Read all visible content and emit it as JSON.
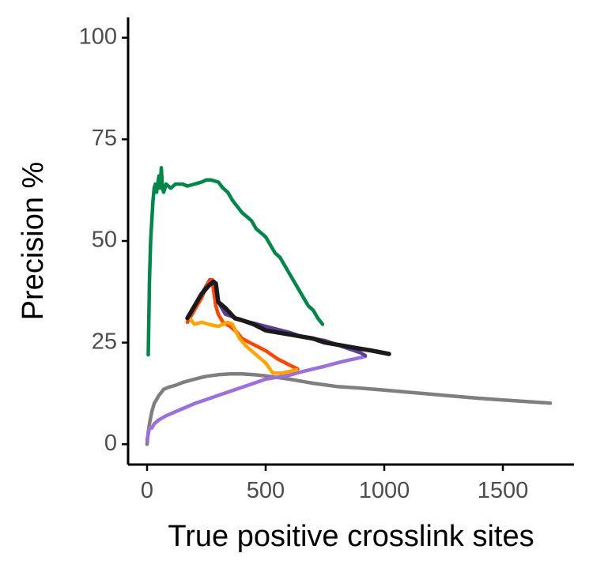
{
  "chart_data": {
    "type": "line",
    "xlabel": "True positive crosslink sites",
    "ylabel": "Precision %",
    "xlim": [
      -80,
      1800
    ],
    "ylim": [
      -5,
      105
    ],
    "x_ticks": [
      0,
      500,
      1000,
      1500
    ],
    "y_ticks": [
      0,
      25,
      50,
      75,
      100
    ],
    "x_tick_labels": [
      "0",
      "500",
      "1000",
      "1500"
    ],
    "y_tick_labels": [
      "0",
      "25",
      "50",
      "75",
      "100"
    ],
    "grid": false,
    "legend": "none",
    "series": [
      {
        "color": "#7f7f7f",
        "points": [
          [
            0,
            0
          ],
          [
            5,
            3
          ],
          [
            10,
            5
          ],
          [
            20,
            8
          ],
          [
            30,
            10
          ],
          [
            50,
            12
          ],
          [
            70,
            13.5
          ],
          [
            90,
            14
          ],
          [
            120,
            14.5
          ],
          [
            150,
            15.2
          ],
          [
            200,
            16
          ],
          [
            250,
            16.7
          ],
          [
            300,
            17.1
          ],
          [
            350,
            17.3
          ],
          [
            400,
            17.3
          ],
          [
            450,
            17.1
          ],
          [
            500,
            16.8
          ],
          [
            600,
            16
          ],
          [
            700,
            15
          ],
          [
            800,
            14.2
          ],
          [
            900,
            13.8
          ],
          [
            1000,
            13.3
          ],
          [
            1100,
            12.8
          ],
          [
            1200,
            12.3
          ],
          [
            1300,
            11.8
          ],
          [
            1400,
            11.3
          ],
          [
            1500,
            10.9
          ],
          [
            1600,
            10.5
          ],
          [
            1700,
            10.1
          ]
        ]
      },
      {
        "color": "#9b6fde",
        "points": [
          [
            0,
            1
          ],
          [
            10,
            4
          ],
          [
            20,
            4
          ],
          [
            30,
            5
          ],
          [
            50,
            6
          ],
          [
            80,
            7
          ],
          [
            120,
            8
          ],
          [
            160,
            9
          ],
          [
            200,
            10
          ],
          [
            250,
            11
          ],
          [
            300,
            12
          ],
          [
            350,
            13
          ],
          [
            400,
            14
          ],
          [
            450,
            15
          ],
          [
            500,
            16
          ],
          [
            550,
            16.5
          ],
          [
            600,
            17
          ],
          [
            650,
            17.8
          ],
          [
            700,
            18.5
          ],
          [
            750,
            19.2
          ],
          [
            800,
            20
          ],
          [
            850,
            20.7
          ],
          [
            900,
            21.3
          ],
          [
            920,
            21.6
          ]
        ]
      },
      {
        "color": "#5a3e97",
        "points": [
          [
            170,
            31
          ],
          [
            190,
            33
          ],
          [
            210,
            35
          ],
          [
            230,
            37
          ],
          [
            250,
            39
          ],
          [
            265,
            40.5
          ],
          [
            280,
            40
          ],
          [
            300,
            35
          ],
          [
            330,
            32
          ],
          [
            400,
            30.5
          ],
          [
            500,
            29
          ],
          [
            600,
            27.5
          ],
          [
            650,
            26.5
          ],
          [
            700,
            26
          ],
          [
            750,
            25.5
          ],
          [
            800,
            24.5
          ],
          [
            850,
            23.5
          ],
          [
            900,
            22.5
          ],
          [
            920,
            21.8
          ]
        ]
      },
      {
        "color": "#ff4500",
        "points": [
          [
            170,
            30
          ],
          [
            190,
            32
          ],
          [
            210,
            34
          ],
          [
            230,
            36
          ],
          [
            260,
            40
          ],
          [
            275,
            40.5
          ],
          [
            280,
            38
          ],
          [
            290,
            34
          ],
          [
            300,
            32
          ],
          [
            320,
            30
          ],
          [
            350,
            29
          ],
          [
            380,
            27.5
          ],
          [
            400,
            26
          ],
          [
            450,
            24.5
          ],
          [
            500,
            23
          ],
          [
            550,
            21
          ],
          [
            600,
            19.5
          ],
          [
            635,
            18.5
          ]
        ]
      },
      {
        "color": "#ffa500",
        "points": [
          [
            180,
            31
          ],
          [
            200,
            29.5
          ],
          [
            230,
            30
          ],
          [
            260,
            29.5
          ],
          [
            300,
            29
          ],
          [
            340,
            30
          ],
          [
            360,
            29.5
          ],
          [
            390,
            26
          ],
          [
            420,
            24
          ],
          [
            460,
            22
          ],
          [
            500,
            20
          ],
          [
            530,
            17.5
          ],
          [
            570,
            17.5
          ],
          [
            630,
            18.3
          ]
        ]
      },
      {
        "color": "#1a1a1a",
        "points": [
          [
            170,
            31
          ],
          [
            200,
            34
          ],
          [
            230,
            37
          ],
          [
            260,
            39
          ],
          [
            280,
            40
          ],
          [
            290,
            39.5
          ],
          [
            300,
            35
          ],
          [
            330,
            33.5
          ],
          [
            370,
            31
          ],
          [
            400,
            30.5
          ],
          [
            450,
            29.5
          ],
          [
            500,
            28
          ],
          [
            550,
            27.5
          ],
          [
            600,
            27
          ],
          [
            650,
            26.5
          ],
          [
            700,
            26
          ],
          [
            750,
            25
          ],
          [
            800,
            24.5
          ],
          [
            850,
            24
          ],
          [
            900,
            23.5
          ],
          [
            950,
            23
          ],
          [
            1020,
            22.2
          ]
        ]
      },
      {
        "color": "#00874a",
        "points": [
          [
            5,
            22
          ],
          [
            10,
            40
          ],
          [
            15,
            50
          ],
          [
            20,
            55
          ],
          [
            25,
            60
          ],
          [
            30,
            63
          ],
          [
            35,
            64
          ],
          [
            40,
            62
          ],
          [
            45,
            64
          ],
          [
            50,
            66
          ],
          [
            55,
            63
          ],
          [
            60,
            68
          ],
          [
            65,
            63
          ],
          [
            70,
            62
          ],
          [
            80,
            64
          ],
          [
            100,
            63
          ],
          [
            120,
            64
          ],
          [
            150,
            64
          ],
          [
            170,
            63.5
          ],
          [
            200,
            64
          ],
          [
            230,
            64.5
          ],
          [
            250,
            65
          ],
          [
            270,
            65
          ],
          [
            300,
            64.5
          ],
          [
            320,
            63
          ],
          [
            340,
            62
          ],
          [
            360,
            60
          ],
          [
            380,
            58.5
          ],
          [
            400,
            57
          ],
          [
            420,
            56
          ],
          [
            440,
            55
          ],
          [
            460,
            53
          ],
          [
            480,
            52
          ],
          [
            500,
            51
          ],
          [
            520,
            49
          ],
          [
            540,
            47
          ],
          [
            560,
            46
          ],
          [
            580,
            44
          ],
          [
            600,
            42
          ],
          [
            620,
            40
          ],
          [
            640,
            38
          ],
          [
            660,
            36
          ],
          [
            680,
            34
          ],
          [
            700,
            33
          ],
          [
            720,
            31
          ],
          [
            740,
            29.5
          ]
        ]
      }
    ]
  }
}
